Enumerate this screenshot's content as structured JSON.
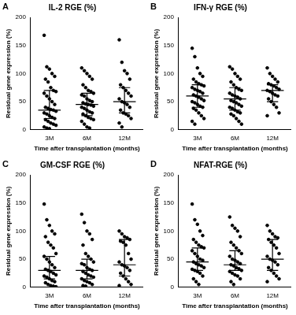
{
  "chart_data": [
    {
      "panel": "A",
      "type": "scatter",
      "title": "IL-2 RGE (%)",
      "x_label": "Time after transplantation (months)",
      "y_label": "Residual gene expression (%)",
      "categories": [
        "3M",
        "6M",
        "12M"
      ],
      "values": [
        [
          168,
          112,
          108,
          100,
          95,
          90,
          85,
          75,
          70,
          68,
          65,
          60,
          55,
          50,
          45,
          40,
          38,
          36,
          35,
          33,
          30,
          28,
          25,
          22,
          20,
          18,
          15,
          12,
          10,
          8,
          5,
          3,
          2
        ],
        [
          110,
          105,
          100,
          95,
          90,
          80,
          75,
          70,
          68,
          65,
          62,
          60,
          55,
          52,
          50,
          48,
          46,
          45,
          44,
          42,
          40,
          38,
          35,
          32,
          30,
          28,
          25,
          22,
          20,
          18,
          15,
          10,
          5,
          3
        ],
        [
          160,
          120,
          105,
          100,
          90,
          80,
          75,
          70,
          65,
          60,
          55,
          50,
          48,
          45,
          40,
          35,
          30,
          28,
          25,
          20,
          12,
          5
        ]
      ],
      "median": [
        35,
        45,
        50
      ],
      "q1": [
        20,
        25,
        30
      ],
      "q3": [
        70,
        65,
        75
      ],
      "color": "#000000",
      "marker": "circle",
      "ylim": [
        0,
        200
      ],
      "yticks": [
        0,
        50,
        100,
        150,
        200
      ],
      "grid": false
    },
    {
      "panel": "B",
      "type": "scatter",
      "title": "IFN-γ RGE (%)",
      "x_label": "Time after transplantation (months)",
      "y_label": "Residual gene expression (%)",
      "categories": [
        "3M",
        "6M",
        "12M"
      ],
      "values": [
        [
          145,
          130,
          110,
          100,
          95,
          90,
          85,
          82,
          80,
          78,
          75,
          72,
          70,
          68,
          65,
          62,
          60,
          58,
          55,
          52,
          50,
          48,
          45,
          42,
          40,
          38,
          35,
          30,
          25,
          20,
          15,
          10
        ],
        [
          112,
          108,
          100,
          95,
          90,
          85,
          80,
          75,
          72,
          70,
          65,
          62,
          60,
          58,
          55,
          52,
          50,
          48,
          45,
          42,
          40,
          38,
          35,
          32,
          30,
          28,
          25,
          20,
          15,
          10
        ],
        [
          110,
          100,
          95,
          90,
          85,
          82,
          80,
          78,
          75,
          72,
          70,
          68,
          65,
          62,
          60,
          55,
          50,
          45,
          40,
          30,
          25
        ]
      ],
      "median": [
        60,
        55,
        70
      ],
      "q1": [
        40,
        35,
        50
      ],
      "q3": [
        80,
        75,
        80
      ],
      "color": "#000000",
      "marker": "circle",
      "ylim": [
        0,
        200
      ],
      "yticks": [
        0,
        50,
        100,
        150,
        200
      ],
      "grid": false
    },
    {
      "panel": "C",
      "type": "scatter",
      "title": "GM-CSF RGE (%)",
      "x_label": "Time after transplantation (months)",
      "y_label": "Residual gene expression (%)",
      "categories": [
        "3M",
        "6M",
        "12M"
      ],
      "values": [
        [
          148,
          120,
          110,
          100,
          95,
          90,
          80,
          75,
          70,
          60,
          55,
          50,
          45,
          40,
          35,
          32,
          30,
          28,
          25,
          22,
          20,
          18,
          15,
          12,
          10,
          8,
          5,
          3,
          2,
          1
        ],
        [
          130,
          115,
          100,
          95,
          85,
          75,
          60,
          55,
          50,
          45,
          42,
          40,
          35,
          32,
          30,
          28,
          25,
          22,
          20,
          18,
          15,
          12,
          10,
          8,
          5,
          3,
          2
        ],
        [
          100,
          95,
          90,
          88,
          85,
          82,
          80,
          75,
          60,
          50,
          45,
          40,
          38,
          35,
          30,
          25,
          20,
          15,
          10,
          5,
          3
        ]
      ],
      "median": [
        30,
        30,
        40
      ],
      "q1": [
        15,
        15,
        20
      ],
      "q3": [
        55,
        50,
        85
      ],
      "color": "#000000",
      "marker": "circle",
      "ylim": [
        0,
        200
      ],
      "yticks": [
        0,
        50,
        100,
        150,
        200
      ],
      "grid": false
    },
    {
      "panel": "D",
      "type": "scatter",
      "title": "NFAT-RGE (%)",
      "x_label": "Time after transplantation (months)",
      "y_label": "Residual gene expression (%)",
      "categories": [
        "3M",
        "6M",
        "12M"
      ],
      "values": [
        [
          148,
          120,
          112,
          100,
          92,
          85,
          80,
          75,
          72,
          70,
          65,
          60,
          55,
          50,
          48,
          45,
          42,
          40,
          38,
          35,
          32,
          30,
          28,
          25,
          20,
          15,
          10,
          5
        ],
        [
          125,
          110,
          105,
          100,
          90,
          80,
          75,
          70,
          65,
          60,
          55,
          50,
          48,
          45,
          42,
          40,
          38,
          35,
          33,
          30,
          28,
          25,
          22,
          20,
          15,
          10,
          5
        ],
        [
          110,
          100,
          95,
          90,
          88,
          85,
          80,
          75,
          70,
          60,
          55,
          50,
          48,
          45,
          40,
          35,
          30,
          25,
          20,
          15,
          10
        ]
      ],
      "median": [
        45,
        40,
        50
      ],
      "q1": [
        30,
        30,
        30
      ],
      "q3": [
        70,
        65,
        85
      ],
      "color": "#000000",
      "marker": "circle",
      "ylim": [
        0,
        200
      ],
      "yticks": [
        0,
        50,
        100,
        150,
        200
      ],
      "grid": false
    }
  ]
}
